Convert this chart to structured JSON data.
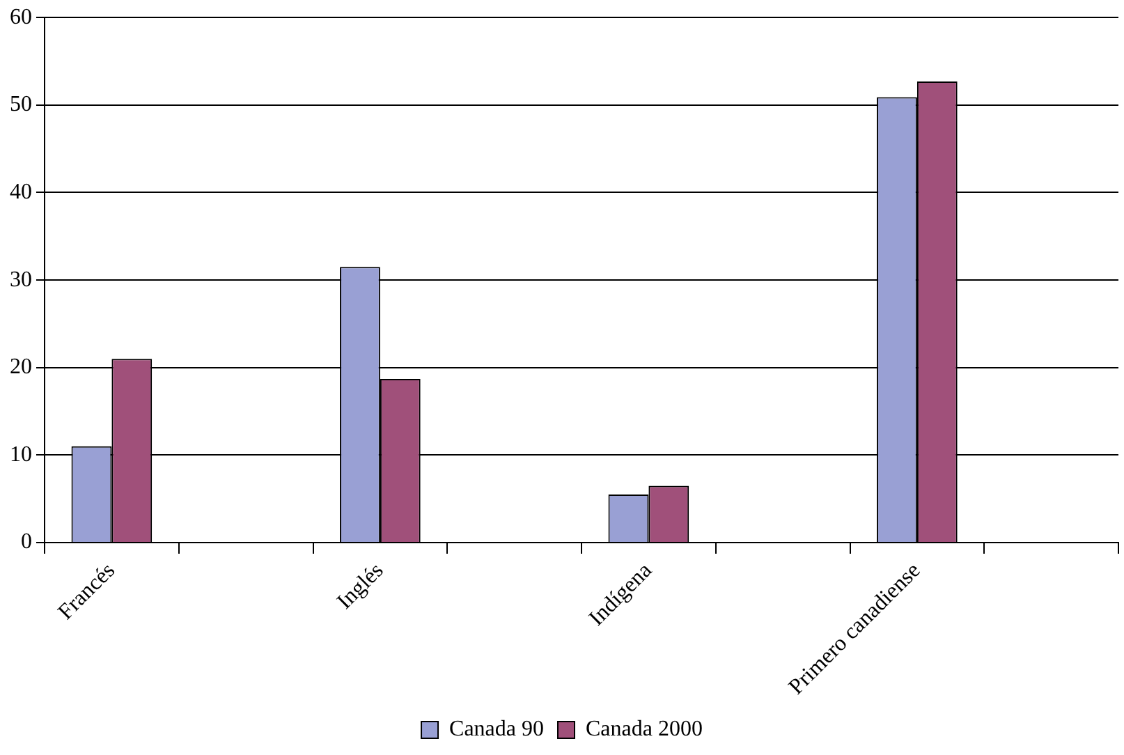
{
  "chart_data": {
    "type": "bar",
    "categories": [
      "Francés",
      null,
      "Inglés",
      null,
      "Indígena",
      null,
      "Primero canadiense",
      null
    ],
    "series": [
      {
        "name": "Canada 90",
        "color": "#99a0d4",
        "values": [
          11,
          null,
          31.5,
          null,
          5.5,
          null,
          50.9,
          null
        ]
      },
      {
        "name": "Canada 2000",
        "color": "#a0507a",
        "values": [
          21,
          null,
          18.7,
          null,
          6.5,
          null,
          52.7,
          null
        ]
      }
    ],
    "ylim": [
      0,
      60
    ],
    "yticks": [
      0,
      10,
      20,
      30,
      40,
      50,
      60
    ],
    "grid": "y",
    "legend": "bottom"
  }
}
